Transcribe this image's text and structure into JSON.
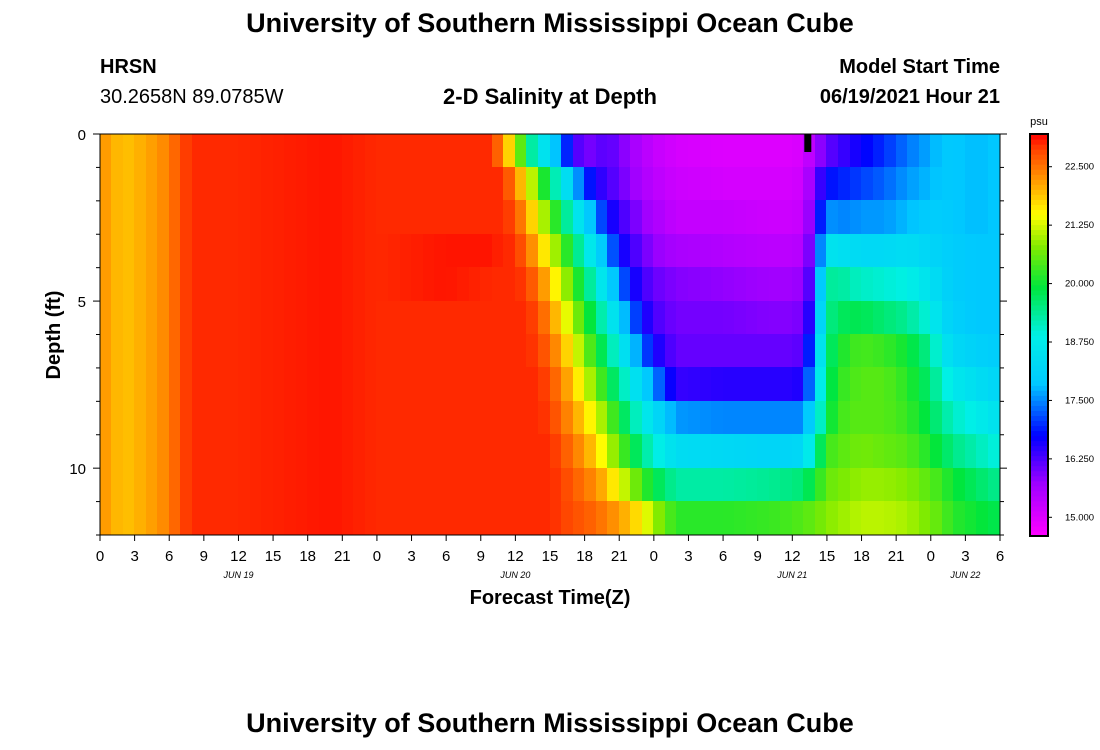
{
  "header": {
    "title": "University of Southern Mississippi Ocean Cube",
    "station": "HRSN",
    "coordinates": "30.2658N  89.0785W",
    "subtitle": "2-D Salinity at Depth",
    "model_start_label": "Model Start Time",
    "model_start_value": "06/19/2021 Hour 21"
  },
  "footer": {
    "title": "University of Southern Mississippi Ocean Cube"
  },
  "chart_data": {
    "type": "heatmap",
    "title": "2-D Salinity at Depth",
    "xlabel": "Forecast Time(Z)",
    "ylabel": "Depth (ft)",
    "x_units": "hours from Jun 19 00Z",
    "x_range": [
      0,
      78
    ],
    "y_range": [
      0,
      12
    ],
    "y_inverted": true,
    "x_tick_values": [
      0,
      3,
      6,
      9,
      12,
      15,
      18,
      21,
      24,
      27,
      30,
      33,
      36,
      39,
      42,
      45,
      48,
      51,
      54,
      57,
      60,
      63,
      66,
      69,
      72,
      75,
      78
    ],
    "x_tick_labels": [
      "0",
      "3",
      "6",
      "9",
      "12",
      "15",
      "18",
      "21",
      "0",
      "3",
      "6",
      "9",
      "12",
      "15",
      "18",
      "21",
      "0",
      "3",
      "6",
      "9",
      "12",
      "15",
      "18",
      "21",
      "0",
      "3",
      "6"
    ],
    "y_tick_values": [
      0,
      5,
      10
    ],
    "y_tick_labels": [
      "0",
      "5",
      "10"
    ],
    "date_labels": [
      {
        "hour": 12,
        "label": "JUN 19"
      },
      {
        "hour": 36,
        "label": "JUN 20"
      },
      {
        "hour": 60,
        "label": "JUN 21"
      },
      {
        "hour": 75,
        "label": "JUN 22"
      }
    ],
    "current_time_marker_hour": 61.3,
    "colorbar": {
      "units": "psu",
      "range": [
        14.6,
        23.2
      ],
      "tick_values": [
        15.0,
        16.25,
        17.5,
        18.75,
        20.0,
        21.25,
        22.5
      ],
      "tick_labels": [
        "15.000",
        "16.250",
        "17.500",
        "18.750",
        "20.000",
        "21.250",
        "22.500"
      ]
    },
    "depth_levels_ft": [
      0.5,
      1.5,
      2.5,
      3.5,
      4.5,
      5.5,
      6.5,
      7.5,
      8.5,
      9.5,
      10.5,
      11.5
    ],
    "salinity_grid": {
      "description": "salinity (psu) by forecast hour; each row lists values for the depth levels",
      "hours": [
        0,
        2,
        4,
        6,
        7,
        8,
        12,
        20,
        24,
        30,
        34,
        35,
        36,
        37,
        38,
        39,
        40,
        41,
        42,
        43,
        44,
        45,
        46,
        47,
        48,
        50,
        54,
        58,
        60,
        61,
        62,
        63,
        64,
        65,
        66,
        68,
        70,
        72,
        73,
        74,
        76,
        78
      ],
      "values": [
        [
          22.3,
          22.3,
          22.3,
          22.3,
          22.3,
          22.3,
          22.3,
          22.3,
          22.3,
          22.3,
          22.3,
          22.3
        ],
        [
          21.9,
          21.9,
          21.9,
          21.9,
          21.9,
          21.9,
          21.9,
          21.9,
          21.9,
          21.9,
          21.9,
          21.9
        ],
        [
          22.1,
          22.1,
          22.1,
          22.1,
          22.1,
          22.1,
          22.1,
          22.1,
          22.1,
          22.1,
          22.1,
          22.1
        ],
        [
          22.4,
          22.4,
          22.4,
          22.4,
          22.4,
          22.4,
          22.4,
          22.4,
          22.4,
          22.4,
          22.4,
          22.4
        ],
        [
          22.8,
          22.8,
          22.8,
          22.8,
          22.8,
          22.8,
          22.8,
          22.8,
          22.8,
          22.8,
          22.8,
          22.8
        ],
        [
          23.0,
          23.0,
          23.0,
          23.0,
          23.0,
          23.0,
          23.0,
          23.0,
          23.0,
          23.0,
          23.0,
          23.0
        ],
        [
          23.0,
          23.0,
          23.0,
          23.0,
          23.0,
          23.0,
          23.0,
          23.0,
          23.0,
          23.0,
          23.0,
          23.0
        ],
        [
          23.1,
          23.1,
          23.1,
          23.1,
          23.1,
          23.1,
          23.1,
          23.1,
          23.1,
          23.1,
          23.1,
          23.1
        ],
        [
          23.0,
          23.0,
          23.0,
          23.0,
          23.0,
          23.0,
          23.0,
          23.0,
          23.0,
          23.0,
          23.0,
          23.0
        ],
        [
          23.0,
          23.0,
          23.0,
          23.1,
          23.1,
          23.0,
          23.0,
          23.0,
          23.0,
          23.0,
          23.0,
          23.0
        ],
        [
          23.0,
          23.0,
          23.0,
          23.1,
          23.0,
          23.0,
          23.0,
          23.0,
          23.0,
          23.0,
          23.0,
          23.0
        ],
        [
          22.3,
          23.0,
          23.0,
          23.0,
          23.0,
          23.0,
          23.0,
          23.0,
          23.0,
          23.0,
          23.0,
          23.0
        ],
        [
          21.3,
          22.4,
          22.8,
          23.0,
          23.0,
          23.0,
          23.0,
          23.0,
          23.0,
          23.0,
          23.0,
          23.0
        ],
        [
          19.8,
          21.6,
          22.2,
          22.6,
          22.9,
          23.0,
          23.0,
          23.0,
          23.0,
          23.0,
          23.0,
          23.0
        ],
        [
          18.8,
          20.6,
          21.4,
          22.0,
          22.5,
          22.8,
          22.9,
          23.0,
          23.0,
          23.0,
          23.0,
          23.0
        ],
        [
          18.3,
          19.6,
          20.6,
          21.3,
          21.9,
          22.3,
          22.6,
          22.8,
          22.9,
          23.0,
          23.0,
          23.0
        ],
        [
          17.4,
          18.8,
          19.8,
          20.6,
          21.2,
          21.7,
          22.1,
          22.4,
          22.6,
          22.8,
          22.9,
          22.9
        ],
        [
          16.5,
          18.0,
          18.9,
          19.8,
          20.5,
          21.0,
          21.5,
          21.9,
          22.2,
          22.5,
          22.7,
          22.8
        ],
        [
          15.9,
          17.1,
          18.3,
          19.0,
          19.7,
          20.3,
          20.8,
          21.3,
          21.8,
          22.2,
          22.5,
          22.7
        ],
        [
          16.1,
          16.6,
          17.5,
          18.4,
          19.0,
          19.6,
          20.1,
          20.7,
          21.3,
          21.8,
          22.3,
          22.6
        ],
        [
          16.2,
          16.3,
          16.8,
          17.6,
          18.3,
          18.9,
          19.5,
          20.0,
          20.7,
          21.2,
          21.9,
          22.4
        ],
        [
          16.0,
          16.1,
          16.4,
          16.8,
          17.5,
          18.2,
          18.8,
          19.4,
          20.0,
          20.6,
          21.4,
          22.2
        ],
        [
          15.7,
          15.8,
          16.1,
          16.4,
          16.8,
          17.4,
          18.1,
          18.8,
          19.4,
          20.0,
          20.9,
          21.9
        ],
        [
          15.5,
          15.6,
          15.8,
          16.1,
          16.4,
          16.8,
          17.4,
          18.2,
          18.9,
          19.5,
          20.4,
          21.6
        ],
        [
          15.3,
          15.4,
          15.6,
          15.8,
          16.1,
          16.3,
          16.7,
          17.6,
          18.4,
          19.0,
          19.9,
          21.0
        ],
        [
          15.1,
          15.2,
          15.3,
          15.6,
          15.9,
          16.0,
          16.1,
          16.4,
          17.6,
          18.4,
          19.3,
          20.2
        ],
        [
          15.0,
          15.1,
          15.3,
          15.5,
          15.8,
          16.0,
          16.1,
          16.5,
          17.5,
          18.3,
          19.3,
          20.2
        ],
        [
          15.0,
          15.1,
          15.2,
          15.4,
          15.7,
          15.9,
          16.1,
          16.5,
          17.5,
          18.2,
          19.4,
          20.3
        ],
        [
          15.0,
          15.1,
          15.2,
          15.4,
          15.7,
          15.9,
          16.1,
          16.5,
          17.5,
          18.2,
          19.5,
          20.4
        ],
        [
          15.1,
          15.2,
          15.3,
          15.5,
          15.8,
          16.0,
          16.2,
          16.6,
          17.5,
          18.3,
          19.6,
          20.5
        ],
        [
          15.6,
          16.0,
          16.2,
          16.4,
          16.6,
          17.0,
          17.6,
          18.0,
          18.4,
          19.2,
          20.0,
          20.6
        ],
        [
          16.1,
          16.8,
          17.6,
          18.6,
          19.3,
          19.4,
          19.5,
          19.6,
          19.8,
          20.3,
          20.6,
          20.8
        ],
        [
          16.3,
          16.9,
          17.5,
          18.5,
          19.4,
          19.7,
          20.0,
          20.2,
          20.3,
          20.5,
          20.7,
          20.9
        ],
        [
          16.5,
          17.0,
          17.5,
          18.4,
          19.2,
          19.8,
          20.3,
          20.4,
          20.5,
          20.6,
          20.8,
          21.0
        ],
        [
          16.7,
          17.1,
          17.6,
          18.3,
          19.1,
          19.8,
          20.4,
          20.5,
          20.5,
          20.7,
          20.9,
          21.1
        ],
        [
          17.0,
          17.3,
          17.6,
          18.3,
          19.0,
          19.6,
          20.3,
          20.5,
          20.5,
          20.6,
          20.9,
          21.1
        ],
        [
          17.4,
          17.6,
          17.8,
          18.4,
          18.9,
          19.4,
          20.0,
          20.2,
          20.3,
          20.5,
          20.8,
          21.0
        ],
        [
          17.7,
          17.8,
          18.0,
          18.2,
          18.5,
          18.9,
          19.4,
          19.6,
          19.8,
          20.1,
          20.5,
          20.7
        ],
        [
          17.9,
          17.9,
          18.0,
          18.1,
          18.2,
          18.3,
          18.7,
          19.1,
          19.4,
          19.8,
          20.3,
          20.5
        ],
        [
          17.9,
          17.9,
          17.9,
          18.0,
          18.0,
          18.1,
          18.3,
          18.7,
          19.1,
          19.5,
          20.0,
          20.2
        ],
        [
          17.8,
          17.8,
          17.8,
          17.9,
          17.9,
          17.9,
          18.1,
          18.4,
          18.8,
          19.2,
          19.7,
          20.0
        ],
        [
          17.9,
          17.9,
          17.9,
          17.9,
          17.9,
          17.9,
          18.0,
          18.2,
          18.5,
          18.9,
          19.4,
          19.8
        ]
      ]
    }
  }
}
